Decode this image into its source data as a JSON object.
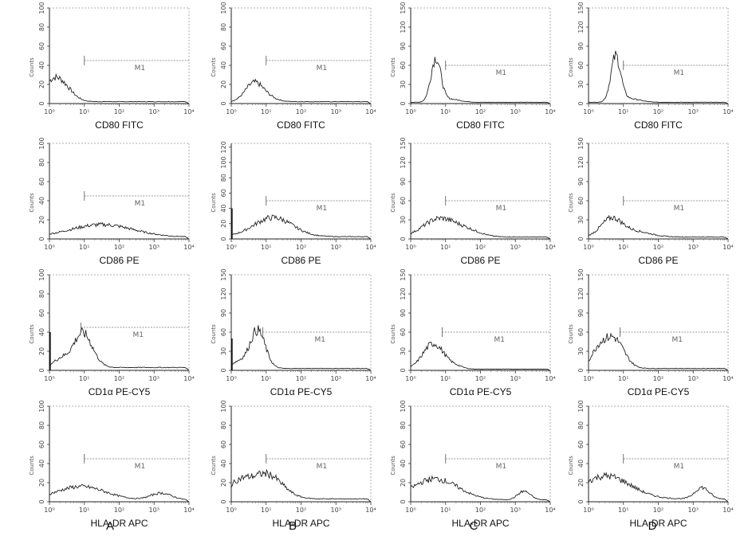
{
  "columns": [
    "A",
    "B",
    "C",
    "D"
  ],
  "rows": [
    {
      "marker": "CD80 FITC"
    },
    {
      "marker": "CD86 PE"
    },
    {
      "marker": "CD1α  PE-CY5"
    },
    {
      "marker": "HLA-DR  APC"
    }
  ],
  "gate_label": "M1",
  "y_axis_label": "Counts",
  "x_tick_labels": [
    "10⁰",
    "10¹",
    "10²",
    "10³",
    "10⁴"
  ],
  "chart_data": [
    {
      "type": "line",
      "panel": "A1",
      "xlabel": "CD80 FITC",
      "ylabel": "Counts",
      "x_scale": "log",
      "xlim": [
        1,
        10000
      ],
      "ylim": [
        0,
        100
      ],
      "y_ticks": [
        0,
        20,
        40,
        60,
        80,
        100
      ],
      "gate": {
        "label": "M1",
        "x_start": 10,
        "x_end": 10000,
        "level": 45
      },
      "peaks": [
        {
          "center_log": 0.15,
          "width_log": 0.3,
          "height": 24
        },
        {
          "center_log": 0.55,
          "width_log": 0.25,
          "height": 5
        }
      ],
      "baseline": 2
    },
    {
      "type": "line",
      "panel": "B1",
      "xlabel": "CD80 FITC",
      "ylabel": "Counts",
      "x_scale": "log",
      "xlim": [
        1,
        10000
      ],
      "ylim": [
        0,
        100
      ],
      "y_ticks": [
        0,
        20,
        40,
        60,
        80,
        100
      ],
      "gate": {
        "label": "M1",
        "x_start": 10,
        "x_end": 10000,
        "level": 45
      },
      "peaks": [
        {
          "center_log": 0.65,
          "width_log": 0.25,
          "height": 19
        },
        {
          "center_log": 1.05,
          "width_log": 0.25,
          "height": 4
        }
      ],
      "baseline": 2
    },
    {
      "type": "line",
      "panel": "C1",
      "xlabel": "CD80 FITC",
      "ylabel": "Counts",
      "x_scale": "log",
      "xlim": [
        1,
        10000
      ],
      "ylim": [
        0,
        150
      ],
      "y_ticks": [
        0,
        30,
        60,
        90,
        120,
        150
      ],
      "gate": {
        "label": "M1",
        "x_start": 10,
        "x_end": 10000,
        "level": 60
      },
      "peaks": [
        {
          "center_log": 0.72,
          "width_log": 0.14,
          "height": 68
        },
        {
          "center_log": 1.1,
          "width_log": 0.3,
          "height": 5
        }
      ],
      "baseline": 2
    },
    {
      "type": "line",
      "panel": "D1",
      "xlabel": "CD80 FITC",
      "ylabel": "Counts",
      "x_scale": "log",
      "xlim": [
        1,
        10000
      ],
      "ylim": [
        0,
        150
      ],
      "y_ticks": [
        0,
        30,
        60,
        90,
        120,
        150
      ],
      "gate": {
        "label": "M1",
        "x_start": 10,
        "x_end": 10000,
        "level": 60
      },
      "peaks": [
        {
          "center_log": 0.78,
          "width_log": 0.14,
          "height": 70
        },
        {
          "center_log": 1.15,
          "width_log": 0.3,
          "height": 6
        }
      ],
      "baseline": 2
    },
    {
      "type": "line",
      "panel": "A2",
      "xlabel": "CD86 PE",
      "ylabel": "Counts",
      "x_scale": "log",
      "xlim": [
        1,
        10000
      ],
      "ylim": [
        0,
        100
      ],
      "y_ticks": [
        0,
        20,
        40,
        60,
        80,
        100
      ],
      "gate": {
        "label": "M1",
        "x_start": 10,
        "x_end": 10000,
        "level": 45
      },
      "peaks": [
        {
          "center_log": 1.5,
          "width_log": 0.9,
          "height": 13
        }
      ],
      "baseline": 2
    },
    {
      "type": "line",
      "panel": "B2",
      "xlabel": "CD86 PE",
      "ylabel": "Counts",
      "x_scale": "log",
      "xlim": [
        1,
        10000
      ],
      "ylim": [
        0,
        125
      ],
      "y_ticks": [
        0,
        20,
        40,
        60,
        80,
        100,
        120
      ],
      "gate": {
        "label": "M1",
        "x_start": 10,
        "x_end": 10000,
        "level": 50
      },
      "peaks": [
        {
          "center_log": 1.2,
          "width_log": 0.55,
          "height": 25
        }
      ],
      "baseline": 3,
      "spike": {
        "log": 0.02,
        "height": 40
      }
    },
    {
      "type": "line",
      "panel": "C2",
      "xlabel": "CD86 PE",
      "ylabel": "Counts",
      "x_scale": "log",
      "xlim": [
        1,
        10000
      ],
      "ylim": [
        0,
        150
      ],
      "y_ticks": [
        0,
        30,
        60,
        90,
        120,
        150
      ],
      "gate": {
        "label": "M1",
        "x_start": 10,
        "x_end": 10000,
        "level": 60
      },
      "peaks": [
        {
          "center_log": 0.8,
          "width_log": 0.45,
          "height": 28
        },
        {
          "center_log": 1.6,
          "width_log": 0.4,
          "height": 10
        }
      ],
      "baseline": 3
    },
    {
      "type": "line",
      "panel": "D2",
      "xlabel": "CD86 PE",
      "ylabel": "Counts",
      "x_scale": "log",
      "xlim": [
        1,
        10000
      ],
      "ylim": [
        0,
        150
      ],
      "y_ticks": [
        0,
        30,
        60,
        90,
        120,
        150
      ],
      "gate": {
        "label": "M1",
        "x_start": 10,
        "x_end": 10000,
        "level": 60
      },
      "peaks": [
        {
          "center_log": 0.65,
          "width_log": 0.3,
          "height": 27
        },
        {
          "center_log": 1.3,
          "width_log": 0.45,
          "height": 9
        }
      ],
      "baseline": 3
    },
    {
      "type": "line",
      "panel": "A3",
      "xlabel": "CD1α  PE-CY5",
      "ylabel": "Counts",
      "x_scale": "log",
      "xlim": [
        1,
        10000
      ],
      "ylim": [
        0,
        100
      ],
      "y_ticks": [
        0,
        20,
        40,
        60,
        80,
        100
      ],
      "gate": {
        "label": "M1",
        "x_start": 8,
        "x_end": 10000,
        "level": 45
      },
      "peaks": [
        {
          "center_log": 0.95,
          "width_log": 0.28,
          "height": 36
        },
        {
          "center_log": 0.3,
          "width_log": 0.2,
          "height": 8
        }
      ],
      "baseline": 3,
      "spike": {
        "log": 0.02,
        "height": 40
      }
    },
    {
      "type": "line",
      "panel": "B3",
      "xlabel": "CD1α  PE-CY5",
      "ylabel": "Counts",
      "x_scale": "log",
      "xlim": [
        1,
        10000
      ],
      "ylim": [
        0,
        150
      ],
      "y_ticks": [
        0,
        30,
        60,
        90,
        120,
        150
      ],
      "gate": {
        "label": "M1",
        "x_start": 8,
        "x_end": 10000,
        "level": 60
      },
      "peaks": [
        {
          "center_log": 0.75,
          "width_log": 0.22,
          "height": 60
        },
        {
          "center_log": 0.2,
          "width_log": 0.2,
          "height": 10
        }
      ],
      "baseline": 3,
      "spike": {
        "log": 0.02,
        "height": 50
      }
    },
    {
      "type": "line",
      "panel": "C3",
      "xlabel": "CD1α  PE-CY5",
      "ylabel": "Counts",
      "x_scale": "log",
      "xlim": [
        1,
        10000
      ],
      "ylim": [
        0,
        150
      ],
      "y_ticks": [
        0,
        30,
        60,
        90,
        120,
        150
      ],
      "gate": {
        "label": "M1",
        "x_start": 8,
        "x_end": 10000,
        "level": 60
      },
      "peaks": [
        {
          "center_log": 0.65,
          "width_log": 0.3,
          "height": 40
        },
        {
          "center_log": 1.3,
          "width_log": 0.2,
          "height": 4
        }
      ],
      "baseline": 2
    },
    {
      "type": "line",
      "panel": "D3",
      "xlabel": "CD1α  PE-CY5",
      "ylabel": "Counts",
      "x_scale": "log",
      "xlim": [
        1,
        10000
      ],
      "ylim": [
        0,
        150
      ],
      "y_ticks": [
        0,
        30,
        60,
        90,
        120,
        150
      ],
      "gate": {
        "label": "M1",
        "x_start": 8,
        "x_end": 10000,
        "level": 60
      },
      "peaks": [
        {
          "center_log": 0.7,
          "width_log": 0.3,
          "height": 48
        },
        {
          "center_log": 0.25,
          "width_log": 0.2,
          "height": 20
        }
      ],
      "baseline": 3
    },
    {
      "type": "line",
      "panel": "A4",
      "xlabel": "HLA-DR  APC",
      "ylabel": "Counts",
      "x_scale": "log",
      "xlim": [
        1,
        10000
      ],
      "ylim": [
        0,
        100
      ],
      "y_ticks": [
        0,
        20,
        40,
        60,
        80,
        100
      ],
      "gate": {
        "label": "M1",
        "x_start": 10,
        "x_end": 10000,
        "level": 45
      },
      "peaks": [
        {
          "center_log": 0.9,
          "width_log": 0.7,
          "height": 14
        },
        {
          "center_log": 3.2,
          "width_log": 0.3,
          "height": 7
        }
      ],
      "baseline": 2
    },
    {
      "type": "line",
      "panel": "B4",
      "xlabel": "HLA-DR  APC",
      "ylabel": "Counts",
      "x_scale": "log",
      "xlim": [
        1,
        10000
      ],
      "ylim": [
        0,
        100
      ],
      "y_ticks": [
        0,
        20,
        40,
        60,
        80,
        100
      ],
      "gate": {
        "label": "M1",
        "x_start": 10,
        "x_end": 10000,
        "level": 45
      },
      "peaks": [
        {
          "center_log": 1.0,
          "width_log": 0.45,
          "height": 26
        },
        {
          "center_log": 0.2,
          "width_log": 0.3,
          "height": 15
        }
      ],
      "baseline": 3
    },
    {
      "type": "line",
      "panel": "C4",
      "xlabel": "HLA-DR  APC",
      "ylabel": "Counts",
      "x_scale": "log",
      "xlim": [
        1,
        10000
      ],
      "ylim": [
        0,
        100
      ],
      "y_ticks": [
        0,
        20,
        40,
        60,
        80,
        100
      ],
      "gate": {
        "label": "M1",
        "x_start": 10,
        "x_end": 10000,
        "level": 45
      },
      "peaks": [
        {
          "center_log": 0.7,
          "width_log": 0.65,
          "height": 22
        },
        {
          "center_log": 3.25,
          "width_log": 0.18,
          "height": 9
        }
      ],
      "baseline": 2
    },
    {
      "type": "line",
      "panel": "D4",
      "xlabel": "HLA-DR  APC",
      "ylabel": "Counts",
      "x_scale": "log",
      "xlim": [
        1,
        10000
      ],
      "ylim": [
        0,
        100
      ],
      "y_ticks": [
        0,
        20,
        40,
        60,
        80,
        100
      ],
      "gate": {
        "label": "M1",
        "x_start": 10,
        "x_end": 10000,
        "level": 45
      },
      "peaks": [
        {
          "center_log": 0.5,
          "width_log": 0.7,
          "height": 24
        },
        {
          "center_log": 3.25,
          "width_log": 0.2,
          "height": 12
        }
      ],
      "baseline": 3
    }
  ]
}
